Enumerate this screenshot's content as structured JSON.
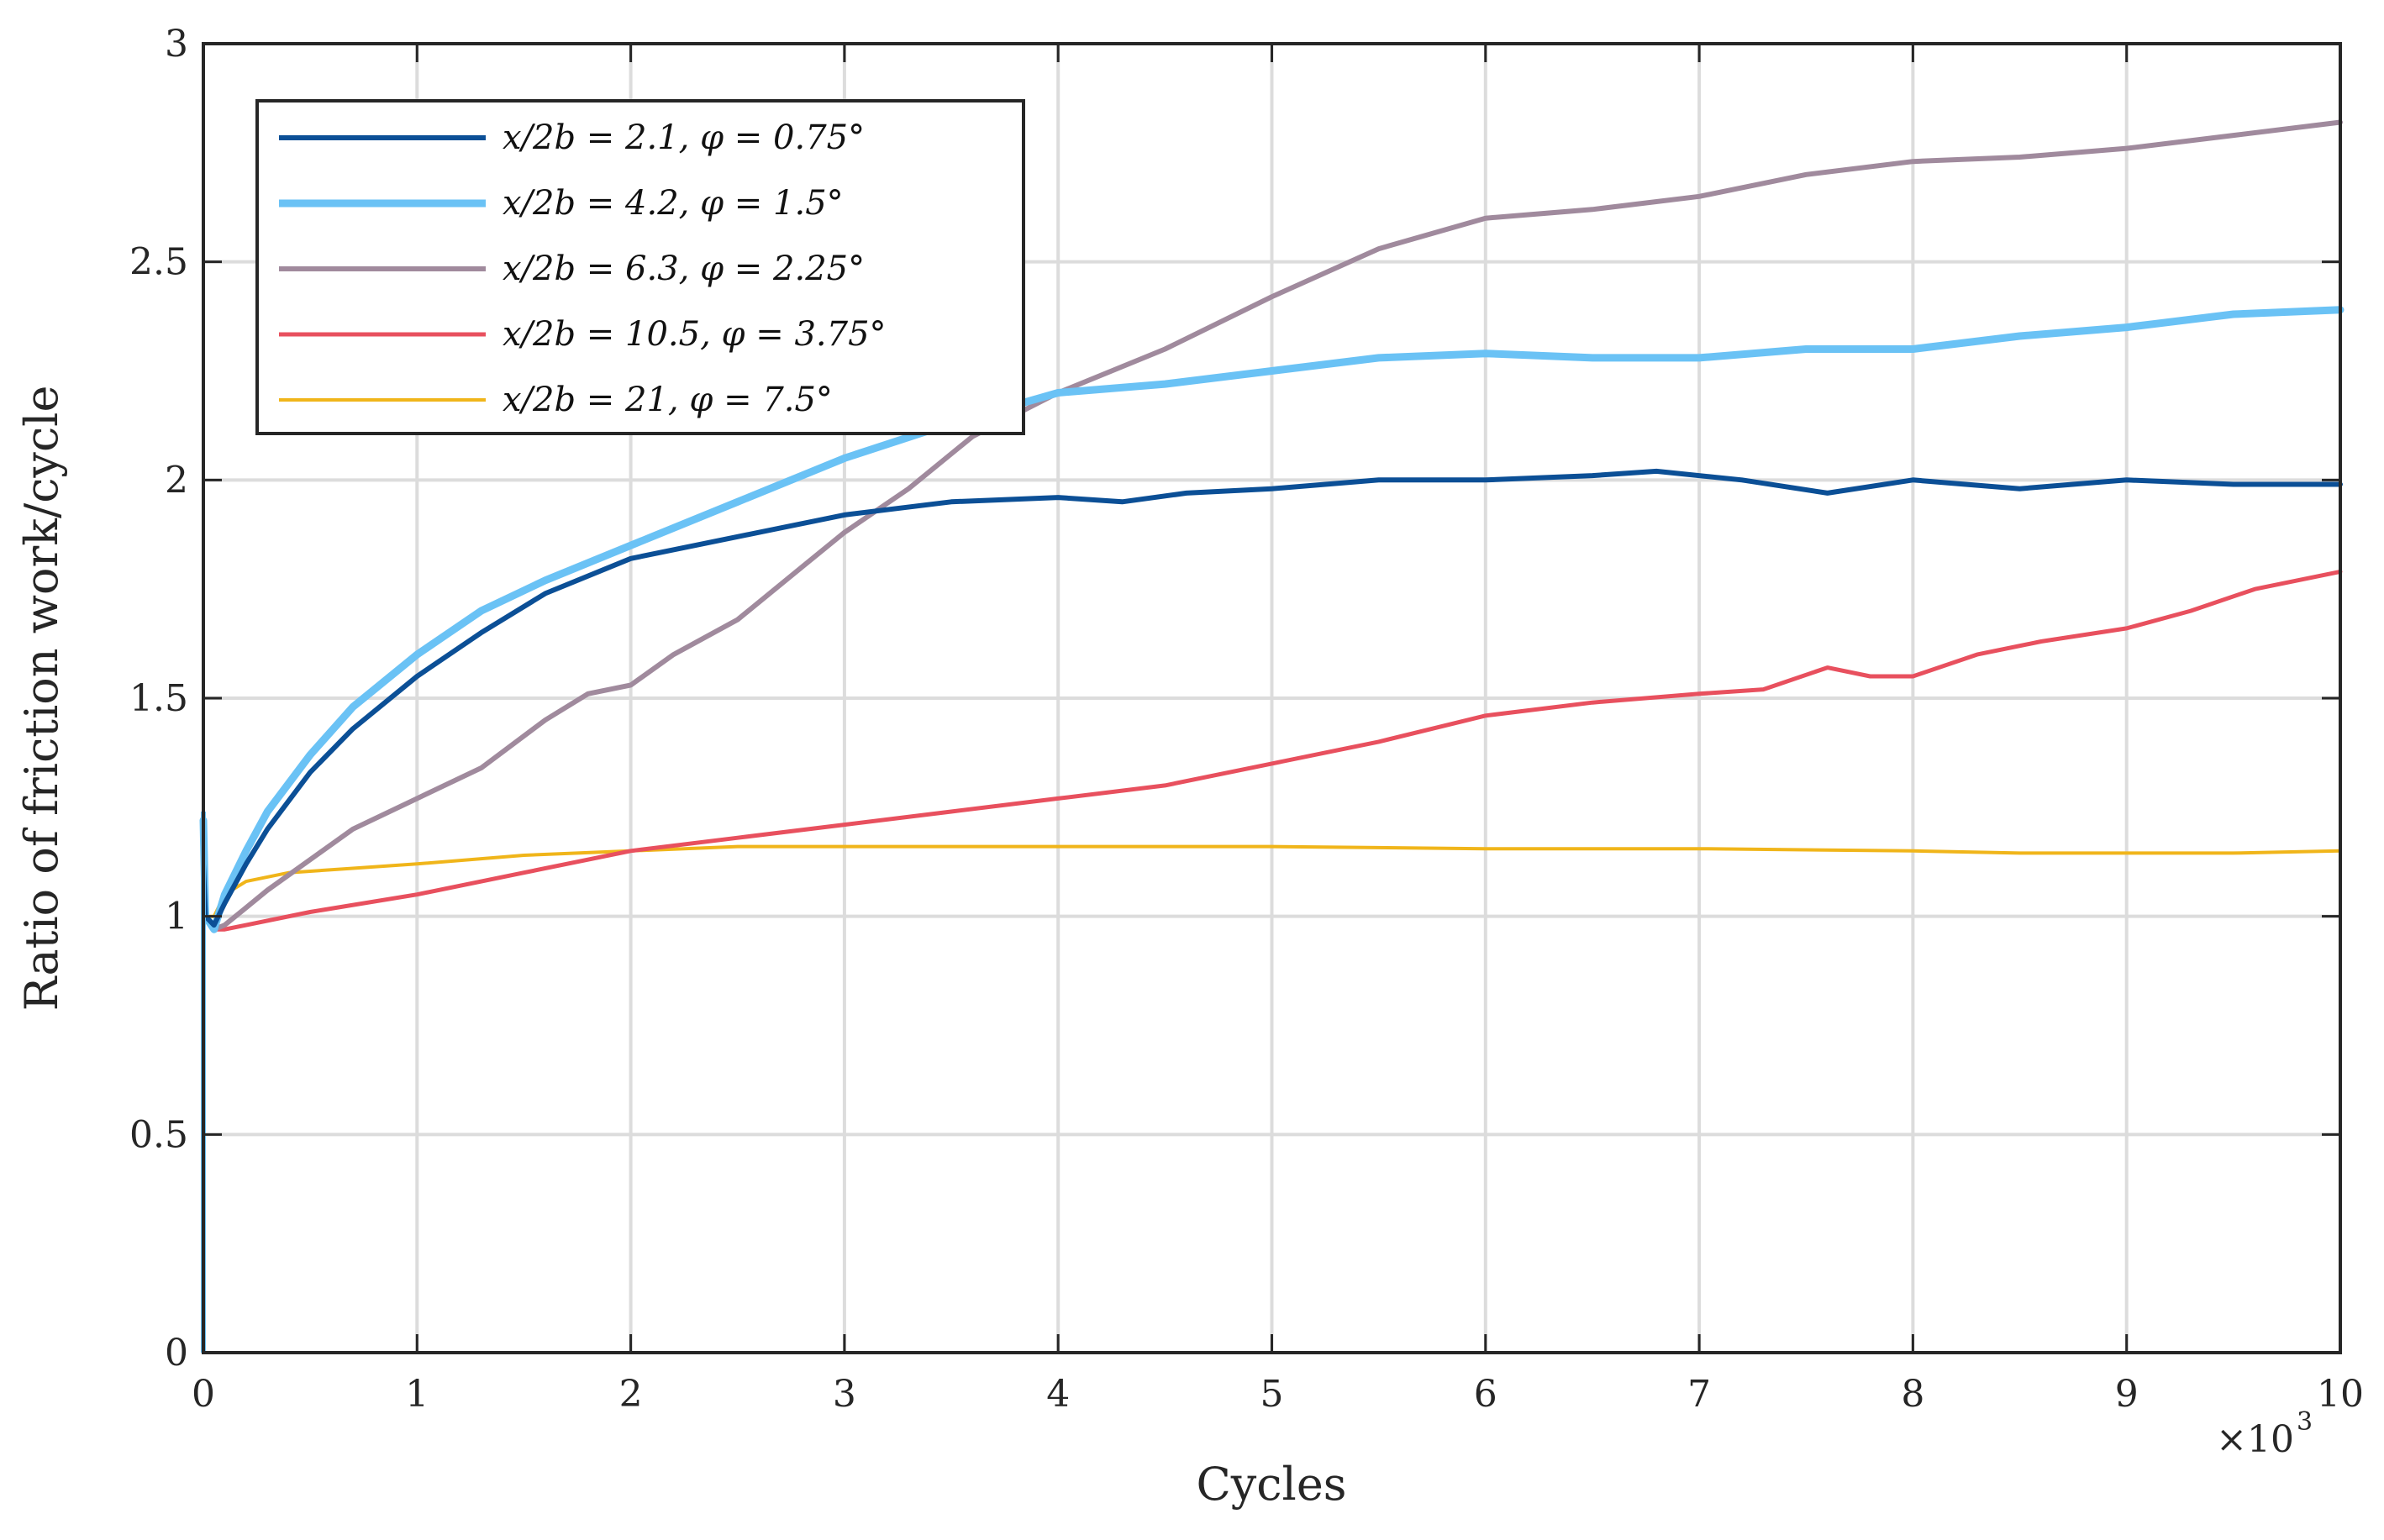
{
  "chart_data": {
    "type": "line",
    "xlabel": "Cycles",
    "ylabel": "Ratio of friction work/cycle",
    "x_multiplier_label": "×10",
    "x_multiplier_exp": "3",
    "xlim": [
      0,
      10
    ],
    "ylim": [
      0,
      3
    ],
    "xticks": [
      0,
      1,
      2,
      3,
      4,
      5,
      6,
      7,
      8,
      9,
      10
    ],
    "xtick_labels": [
      "0",
      "1",
      "2",
      "3",
      "4",
      "5",
      "6",
      "7",
      "8",
      "9",
      "10"
    ],
    "yticks": [
      0,
      0.5,
      1,
      1.5,
      2,
      2.5,
      3
    ],
    "ytick_labels": [
      "0",
      "0.5",
      "1",
      "1.5",
      "2",
      "2.5",
      "3"
    ],
    "grid": true,
    "legend_position": "top-left",
    "series": [
      {
        "name": "x/2b = 2.1, φ = 0.75°",
        "color": "#0b4f96",
        "x": [
          0,
          0.01,
          0.05,
          0.1,
          0.2,
          0.3,
          0.5,
          0.7,
          1.0,
          1.3,
          1.6,
          2.0,
          2.5,
          3.0,
          3.5,
          4.0,
          4.3,
          4.6,
          5.0,
          5.5,
          6.0,
          6.5,
          6.8,
          7.2,
          7.6,
          8.0,
          8.5,
          9.0,
          9.5,
          10.0
        ],
        "values": [
          1.12,
          1.0,
          0.98,
          1.03,
          1.12,
          1.2,
          1.33,
          1.43,
          1.55,
          1.65,
          1.74,
          1.82,
          1.87,
          1.92,
          1.95,
          1.96,
          1.95,
          1.97,
          1.98,
          2.0,
          2.0,
          2.01,
          2.02,
          2.0,
          1.97,
          2.0,
          1.98,
          2.0,
          1.99,
          1.99
        ]
      },
      {
        "name": "x/2b = 4.2, φ = 1.5°",
        "color": "#6ac2f5",
        "x": [
          0,
          0.01,
          0.05,
          0.1,
          0.2,
          0.3,
          0.5,
          0.7,
          1.0,
          1.3,
          1.6,
          2.0,
          2.5,
          3.0,
          3.5,
          4.0,
          4.5,
          5.0,
          5.5,
          6.0,
          6.5,
          7.0,
          7.5,
          8.0,
          8.5,
          9.0,
          9.5,
          10.0
        ],
        "values": [
          1.22,
          1.0,
          0.97,
          1.05,
          1.15,
          1.24,
          1.37,
          1.48,
          1.6,
          1.7,
          1.77,
          1.85,
          1.95,
          2.05,
          2.13,
          2.2,
          2.22,
          2.25,
          2.28,
          2.29,
          2.28,
          2.28,
          2.3,
          2.3,
          2.33,
          2.35,
          2.38,
          2.39
        ]
      },
      {
        "name": "x/2b = 6.3, φ = 2.25°",
        "color": "#a08a9d",
        "x": [
          0,
          0.01,
          0.05,
          0.1,
          0.2,
          0.3,
          0.5,
          0.7,
          1.0,
          1.3,
          1.6,
          1.8,
          2.0,
          2.2,
          2.5,
          2.8,
          3.0,
          3.3,
          3.6,
          4.0,
          4.5,
          5.0,
          5.5,
          6.0,
          6.5,
          7.0,
          7.5,
          8.0,
          8.5,
          9.0,
          9.5,
          10.0
        ],
        "values": [
          1.07,
          1.0,
          0.97,
          0.98,
          1.02,
          1.06,
          1.13,
          1.2,
          1.27,
          1.34,
          1.45,
          1.51,
          1.53,
          1.6,
          1.68,
          1.8,
          1.88,
          1.98,
          2.1,
          2.2,
          2.3,
          2.42,
          2.53,
          2.6,
          2.62,
          2.65,
          2.7,
          2.73,
          2.74,
          2.76,
          2.79,
          2.82
        ]
      },
      {
        "name": "x/2b = 10.5, φ = 3.75°",
        "color": "#e8505e",
        "x": [
          0,
          0.01,
          0.05,
          0.1,
          0.2,
          0.5,
          1.0,
          1.5,
          2.0,
          2.5,
          3.0,
          3.5,
          4.0,
          4.5,
          5.0,
          5.5,
          6.0,
          6.5,
          7.0,
          7.3,
          7.6,
          7.8,
          8.0,
          8.3,
          8.6,
          9.0,
          9.3,
          9.6,
          10.0
        ],
        "values": [
          1.1,
          1.0,
          0.97,
          0.97,
          0.98,
          1.01,
          1.05,
          1.1,
          1.15,
          1.18,
          1.21,
          1.24,
          1.27,
          1.3,
          1.35,
          1.4,
          1.46,
          1.49,
          1.51,
          1.52,
          1.57,
          1.55,
          1.55,
          1.6,
          1.63,
          1.66,
          1.7,
          1.75,
          1.79
        ]
      },
      {
        "name": "x/2b = 21, φ = 7.5°",
        "color": "#f0b51a",
        "x": [
          0,
          0.01,
          0.05,
          0.1,
          0.2,
          0.4,
          0.7,
          1.0,
          1.5,
          2.0,
          2.5,
          3.0,
          3.5,
          4.0,
          5.0,
          6.0,
          7.0,
          8.0,
          8.5,
          9.0,
          9.5,
          10.0
        ],
        "values": [
          1.05,
          1.0,
          1.0,
          1.05,
          1.08,
          1.1,
          1.11,
          1.12,
          1.14,
          1.15,
          1.16,
          1.16,
          1.16,
          1.16,
          1.16,
          1.155,
          1.155,
          1.15,
          1.145,
          1.145,
          1.145,
          1.15
        ]
      }
    ]
  }
}
